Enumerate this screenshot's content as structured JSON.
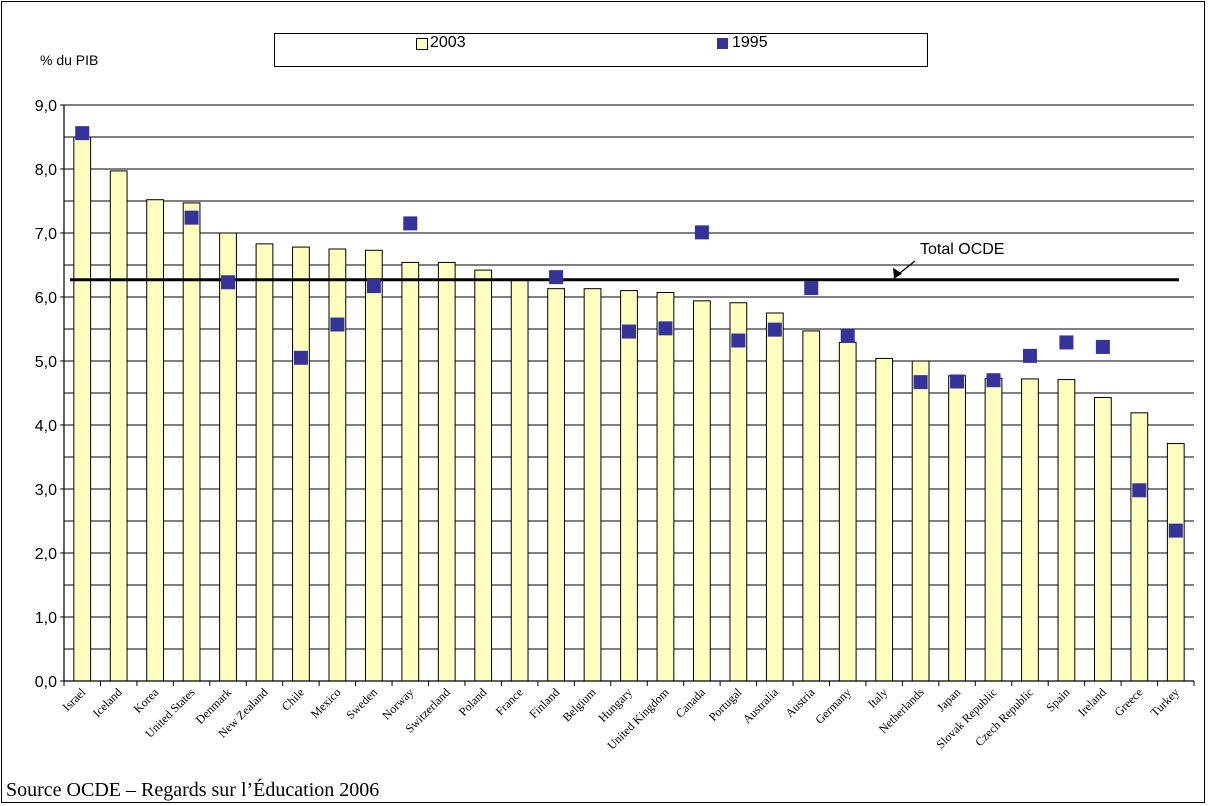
{
  "chart_data": {
    "type": "bar",
    "ylabel": "% du PIB",
    "ylim": [
      0,
      9
    ],
    "yticks": [
      "0,0",
      "1,0",
      "2,0",
      "3,0",
      "4,0",
      "5,0",
      "6,0",
      "7,0",
      "8,0",
      "9,0"
    ],
    "grid": true,
    "legend_position": "top",
    "categories": [
      "Israel",
      "Iceland",
      "Korea",
      "United States",
      "Denmark",
      "New Zealand",
      "Chile",
      "Mexico",
      "Sweden",
      "Norway",
      "Switzerland",
      "Poland",
      "France",
      "Finland",
      "Belgium",
      "Hungary",
      "United Kingdom",
      "Canada",
      "Portugal",
      "Australia",
      "Austria",
      "Germany",
      "Italy",
      "Netherlands",
      "Japan",
      "Slovak Republic",
      "Czech Republic",
      "Spain",
      "Ireland",
      "Greece",
      "Turkey"
    ],
    "series": [
      {
        "name": "2003",
        "type": "bar",
        "color": "#ffffc0",
        "values": [
          8.5,
          7.97,
          7.52,
          7.47,
          7.0,
          6.83,
          6.78,
          6.75,
          6.73,
          6.54,
          6.54,
          6.42,
          6.28,
          6.13,
          6.13,
          6.1,
          6.07,
          5.94,
          5.91,
          5.75,
          5.47,
          5.29,
          5.04,
          5.0,
          4.77,
          4.73,
          4.72,
          4.71,
          4.43,
          4.19,
          3.71
        ]
      },
      {
        "name": "1995",
        "type": "scatter",
        "color": "#333399",
        "values": [
          8.56,
          null,
          null,
          7.24,
          6.23,
          null,
          5.05,
          5.57,
          6.17,
          7.15,
          null,
          null,
          null,
          6.31,
          null,
          5.46,
          5.51,
          7.01,
          5.32,
          5.49,
          6.14,
          5.39,
          null,
          4.67,
          4.68,
          4.7,
          5.08,
          5.29,
          5.22,
          2.98,
          2.35
        ]
      }
    ],
    "reference_line": {
      "label": "Total OCDE",
      "value": 6.27
    }
  },
  "source": "Source OCDE – Regards sur l’Éducation 2006"
}
